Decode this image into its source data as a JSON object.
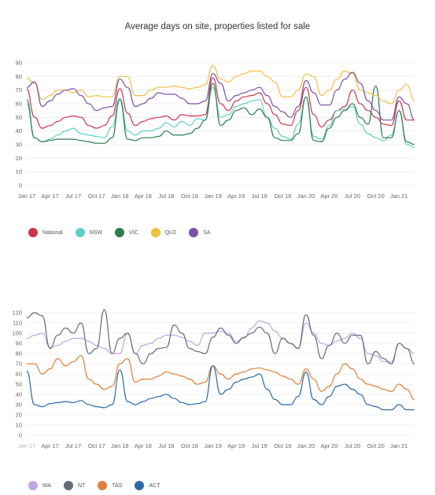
{
  "chart_data": [
    {
      "type": "line",
      "title": "Average days on site, properties listed for sale",
      "ylim": [
        0,
        90
      ],
      "yticks": [
        0,
        10,
        20,
        30,
        40,
        50,
        60,
        70,
        80,
        90
      ],
      "x": [
        "Jan 17",
        "Feb 17",
        "Mar 17",
        "Apr 17",
        "May 17",
        "Jun 17",
        "Jul 17",
        "Aug 17",
        "Sep 17",
        "Oct 17",
        "Nov 17",
        "Dec 17",
        "Jan 18",
        "Feb 18",
        "Mar 18",
        "Apr 18",
        "May 18",
        "Jun 18",
        "Jul 18",
        "Aug 18",
        "Sep 18",
        "Oct 18",
        "Nov 18",
        "Dec 18",
        "Jan 19",
        "Feb 19",
        "Mar 19",
        "Apr 19",
        "May 19",
        "Jun 19",
        "Jul 19",
        "Aug 19",
        "Sep 19",
        "Oct 19",
        "Nov 19",
        "Dec 19",
        "Jan 20",
        "Feb 20",
        "Mar 20",
        "Apr 20",
        "May 20",
        "Jun 20",
        "Jul 20",
        "Aug 20",
        "Sep 20",
        "Oct 20",
        "Nov 20",
        "Dec 20",
        "Jan 21",
        "Feb 21",
        "Mar 21"
      ],
      "xtick_labels": [
        "Jan 17",
        "Apr 17",
        "Jul 17",
        "Oct 17",
        "Jan 18",
        "Apr 18",
        "Jul 18",
        "Oct 18",
        "Jan 19",
        "Apr 19",
        "Jul 19",
        "Oct 19",
        "Jan 20",
        "Apr 20",
        "Jul 20",
        "Oct 20",
        "Jan 21"
      ],
      "legend_position": "bottom-left",
      "series": [
        {
          "name": "National",
          "color": "#d1344a",
          "values": [
            71,
            50,
            42,
            44,
            47,
            50,
            51,
            50,
            44,
            42,
            44,
            51,
            71,
            53,
            44,
            47,
            49,
            50,
            51,
            48,
            52,
            51,
            51,
            52,
            79,
            60,
            55,
            62,
            65,
            66,
            68,
            60,
            52,
            45,
            44,
            55,
            72,
            52,
            43,
            48,
            55,
            58,
            70,
            60,
            55,
            50,
            45,
            44,
            62,
            48,
            48
          ]
        },
        {
          "name": "NSW",
          "color": "#5fcfc6",
          "values": [
            60,
            35,
            32,
            34,
            37,
            40,
            42,
            38,
            37,
            36,
            35,
            43,
            64,
            40,
            37,
            40,
            40,
            42,
            46,
            43,
            47,
            44,
            49,
            48,
            72,
            50,
            52,
            58,
            60,
            62,
            63,
            50,
            42,
            36,
            34,
            45,
            65,
            36,
            34,
            44,
            55,
            56,
            58,
            45,
            38,
            35,
            33,
            37,
            55,
            30,
            28
          ]
        },
        {
          "name": "VIC",
          "color": "#2e7d4f",
          "values": [
            63,
            35,
            32,
            33,
            34,
            34,
            34,
            33,
            32,
            31,
            31,
            35,
            63,
            34,
            33,
            35,
            35,
            36,
            40,
            37,
            37,
            38,
            42,
            48,
            75,
            44,
            48,
            55,
            57,
            52,
            56,
            50,
            35,
            33,
            33,
            38,
            65,
            33,
            32,
            42,
            50,
            55,
            60,
            50,
            45,
            73,
            35,
            35,
            55,
            32,
            30
          ]
        },
        {
          "name": "QLD",
          "color": "#f2bf45",
          "values": [
            79,
            75,
            63,
            66,
            70,
            70,
            68,
            70,
            65,
            66,
            65,
            65,
            80,
            80,
            66,
            66,
            70,
            72,
            72,
            73,
            72,
            71,
            72,
            74,
            88,
            78,
            76,
            80,
            82,
            84,
            84,
            80,
            76,
            65,
            65,
            70,
            82,
            80,
            66,
            70,
            78,
            84,
            82,
            70,
            68,
            66,
            62,
            60,
            70,
            74,
            62
          ]
        },
        {
          "name": "SA",
          "color": "#7b52a8",
          "values": [
            72,
            76,
            58,
            62,
            67,
            70,
            71,
            66,
            60,
            55,
            57,
            58,
            78,
            72,
            58,
            60,
            64,
            68,
            67,
            67,
            64,
            60,
            60,
            62,
            82,
            75,
            62,
            66,
            68,
            70,
            72,
            66,
            58,
            54,
            50,
            58,
            77,
            68,
            59,
            59,
            70,
            78,
            83,
            75,
            62,
            55,
            48,
            48,
            65,
            60,
            48
          ]
        }
      ]
    },
    {
      "type": "line",
      "title": "",
      "ylim": [
        0,
        120
      ],
      "yticks": [
        0,
        10,
        20,
        30,
        40,
        50,
        60,
        70,
        80,
        90,
        100,
        110,
        120
      ],
      "x": [
        "Jan 17",
        "Feb 17",
        "Mar 17",
        "Apr 17",
        "May 17",
        "Jun 17",
        "Jul 17",
        "Aug 17",
        "Sep 17",
        "Oct 17",
        "Nov 17",
        "Dec 17",
        "Jan 18",
        "Feb 18",
        "Mar 18",
        "Apr 18",
        "May 18",
        "Jun 18",
        "Jul 18",
        "Aug 18",
        "Sep 18",
        "Oct 18",
        "Nov 18",
        "Dec 18",
        "Jan 19",
        "Feb 19",
        "Mar 19",
        "Apr 19",
        "May 19",
        "Jun 19",
        "Jul 19",
        "Aug 19",
        "Sep 19",
        "Oct 19",
        "Nov 19",
        "Dec 19",
        "Jan 20",
        "Feb 20",
        "Mar 20",
        "Apr 20",
        "May 20",
        "Jun 20",
        "Jul 20",
        "Aug 20",
        "Sep 20",
        "Oct 20",
        "Nov 20",
        "Dec 20",
        "Jan 21",
        "Feb 21",
        "Mar 21"
      ],
      "xtick_labels": [
        "Jan 17",
        "Apr 17",
        "Jul 17",
        "Oct 17",
        "Jan 18",
        "Apr 18",
        "Jul 18",
        "Oct 18",
        "Jan 19",
        "Apr 19",
        "Jul 19",
        "Oct 19",
        "Jan 20",
        "Apr 20",
        "Jul 20",
        "Oct 20",
        "Jan 21"
      ],
      "legend_position": "bottom-left",
      "series": [
        {
          "name": "WA",
          "color": "#c3a6e6",
          "values": [
            95,
            98,
            100,
            86,
            88,
            92,
            95,
            95,
            92,
            88,
            85,
            80,
            80,
            100,
            80,
            88,
            90,
            95,
            98,
            98,
            96,
            92,
            88,
            100,
            100,
            102,
            100,
            92,
            95,
            105,
            112,
            110,
            102,
            95,
            90,
            85,
            110,
            100,
            90,
            88,
            92,
            95,
            100,
            95,
            80,
            78,
            72,
            72,
            90,
            85,
            80
          ]
        },
        {
          "name": "NT",
          "color": "#666d78",
          "values": [
            115,
            120,
            117,
            85,
            98,
            105,
            100,
            110,
            80,
            85,
            123,
            80,
            95,
            100,
            80,
            70,
            80,
            85,
            86,
            108,
            100,
            85,
            82,
            80,
            96,
            105,
            98,
            90,
            96,
            100,
            106,
            100,
            80,
            95,
            90,
            85,
            118,
            98,
            75,
            88,
            100,
            90,
            98,
            98,
            70,
            82,
            75,
            70,
            90,
            85,
            70
          ]
        },
        {
          "name": "TAS",
          "color": "#e07f3a",
          "values": [
            70,
            70,
            60,
            65,
            75,
            68,
            72,
            78,
            55,
            50,
            45,
            48,
            70,
            75,
            52,
            55,
            55,
            58,
            62,
            60,
            58,
            55,
            50,
            52,
            68,
            60,
            55,
            60,
            62,
            65,
            66,
            64,
            62,
            58,
            55,
            50,
            65,
            55,
            43,
            48,
            60,
            70,
            65,
            55,
            50,
            48,
            45,
            43,
            50,
            45,
            35
          ]
        },
        {
          "name": "ACT",
          "color": "#2f6aa7",
          "values": [
            63,
            30,
            28,
            31,
            32,
            33,
            32,
            34,
            30,
            28,
            27,
            30,
            64,
            33,
            30,
            33,
            36,
            38,
            40,
            36,
            32,
            30,
            31,
            33,
            68,
            40,
            45,
            52,
            55,
            57,
            60,
            45,
            35,
            30,
            30,
            38,
            62,
            35,
            30,
            38,
            48,
            50,
            45,
            40,
            30,
            28,
            25,
            25,
            30,
            25,
            25
          ]
        }
      ]
    }
  ]
}
